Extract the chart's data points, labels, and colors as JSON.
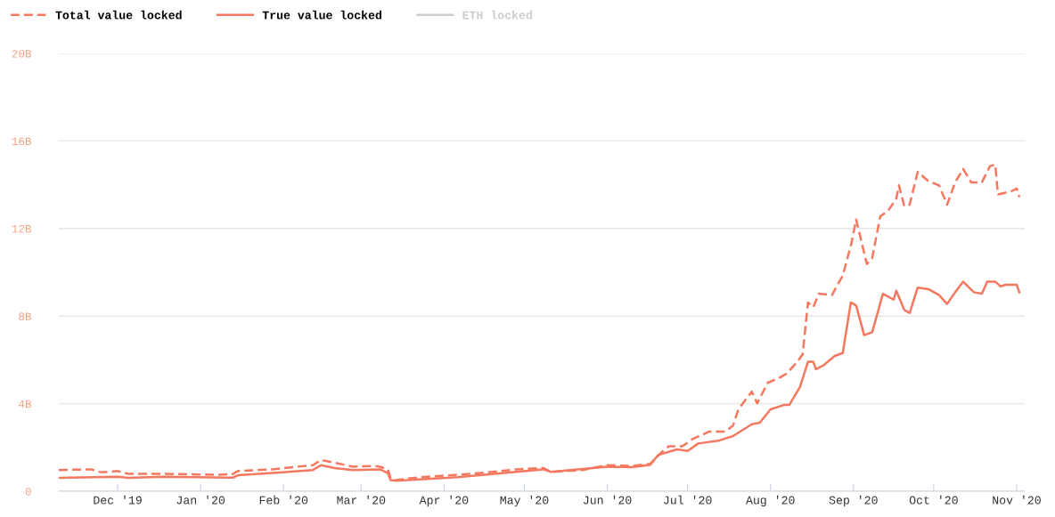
{
  "chart_data": {
    "type": "line",
    "legend": "top left",
    "grid": "y",
    "xlim": [
      "2019-11-09",
      "2020-11-04"
    ],
    "ylim": [
      0,
      20
    ],
    "yticks": [
      0,
      {
        "value": 4,
        "label": "4B"
      },
      {
        "value": 8,
        "label": "8B"
      },
      {
        "value": 12,
        "label": "12B"
      },
      {
        "value": 16,
        "label": "16B"
      },
      {
        "value": 20,
        "label": "20B"
      }
    ],
    "xticks": [
      {
        "value": "2019-12-01",
        "label": "Dec '19"
      },
      {
        "value": "2020-01-01",
        "label": "Jan '20"
      },
      {
        "value": "2020-02-01",
        "label": "Feb '20"
      },
      {
        "value": "2020-03-01",
        "label": "Mar '20"
      },
      {
        "value": "2020-04-01",
        "label": "Apr '20"
      },
      {
        "value": "2020-05-01",
        "label": "May '20"
      },
      {
        "value": "2020-06-01",
        "label": "Jun '20"
      },
      {
        "value": "2020-07-01",
        "label": "Jul '20"
      },
      {
        "value": "2020-08-01",
        "label": "Aug '20"
      },
      {
        "value": "2020-09-01",
        "label": "Sep '20"
      },
      {
        "value": "2020-10-01",
        "label": "Oct '20"
      },
      {
        "value": "2020-11-01",
        "label": "Nov '20"
      }
    ],
    "series": [
      {
        "name": "Total value locked",
        "color": "#f4785f",
        "line_style": "dashed",
        "x": [
          "2019-11-09",
          "2019-11-21",
          "2019-11-25",
          "2019-12-01",
          "2019-12-05",
          "2019-12-18",
          "2020-01-07",
          "2020-01-13",
          "2020-01-15",
          "2020-01-28",
          "2020-02-06",
          "2020-02-12",
          "2020-02-15",
          "2020-02-20",
          "2020-02-27",
          "2020-03-06",
          "2020-03-08",
          "2020-03-11",
          "2020-03-12",
          "2020-03-14",
          "2020-03-23",
          "2020-04-06",
          "2020-04-19",
          "2020-04-28",
          "2020-05-08",
          "2020-05-11",
          "2020-05-23",
          "2020-06-01",
          "2020-06-10",
          "2020-06-17",
          "2020-06-21",
          "2020-06-24",
          "2020-06-29",
          "2020-07-03",
          "2020-07-09",
          "2020-07-15",
          "2020-07-18",
          "2020-07-20",
          "2020-07-25",
          "2020-07-27",
          "2020-07-31",
          "2020-08-04",
          "2020-08-07",
          "2020-08-11",
          "2020-08-13",
          "2020-08-15",
          "2020-08-17",
          "2020-08-19",
          "2020-08-24",
          "2020-08-26",
          "2020-08-28",
          "2020-08-30",
          "2020-08-31",
          "2020-09-02",
          "2020-09-06",
          "2020-09-08",
          "2020-09-11",
          "2020-09-14",
          "2020-09-17",
          "2020-09-18",
          "2020-09-20",
          "2020-09-22",
          "2020-09-25",
          "2020-09-29",
          "2020-10-03",
          "2020-10-06",
          "2020-10-09",
          "2020-10-12",
          "2020-10-15",
          "2020-10-19",
          "2020-10-22",
          "2020-10-24",
          "2020-10-25",
          "2020-10-30",
          "2020-11-01",
          "2020-11-02"
        ],
        "values": [
          0.97,
          1.0,
          0.86,
          0.92,
          0.79,
          0.79,
          0.75,
          0.79,
          0.92,
          1.0,
          1.12,
          1.19,
          1.43,
          1.3,
          1.12,
          1.16,
          1.12,
          1.0,
          0.6,
          0.51,
          0.64,
          0.75,
          0.88,
          1.0,
          1.06,
          0.88,
          0.97,
          1.19,
          1.15,
          1.25,
          1.75,
          2.05,
          2.05,
          2.39,
          2.72,
          2.72,
          3.0,
          3.74,
          4.55,
          4.01,
          4.96,
          5.16,
          5.37,
          5.91,
          6.25,
          8.62,
          8.41,
          9.02,
          8.96,
          9.43,
          9.84,
          10.78,
          11.19,
          12.41,
          10.38,
          10.65,
          12.55,
          12.82,
          13.36,
          13.97,
          13.02,
          13.09,
          14.58,
          14.17,
          13.97,
          13.09,
          14.11,
          14.72,
          14.11,
          14.11,
          14.85,
          14.92,
          13.56,
          13.7,
          13.83,
          13.43
        ]
      },
      {
        "name": "True value locked",
        "color": "#f4785f",
        "line_style": "solid",
        "x": [
          "2019-11-09",
          "2019-12-01",
          "2019-12-05",
          "2019-12-18",
          "2020-01-13",
          "2020-01-15",
          "2020-01-28",
          "2020-02-12",
          "2020-02-15",
          "2020-02-20",
          "2020-02-27",
          "2020-03-08",
          "2020-03-11",
          "2020-03-12",
          "2020-03-14",
          "2020-04-06",
          "2020-04-28",
          "2020-05-08",
          "2020-05-11",
          "2020-06-01",
          "2020-06-10",
          "2020-06-17",
          "2020-06-20",
          "2020-06-27",
          "2020-07-01",
          "2020-07-05",
          "2020-07-13",
          "2020-07-18",
          "2020-07-25",
          "2020-07-28",
          "2020-08-01",
          "2020-08-06",
          "2020-08-08",
          "2020-08-12",
          "2020-08-15",
          "2020-08-17",
          "2020-08-18",
          "2020-08-21",
          "2020-08-25",
          "2020-08-28",
          "2020-08-31",
          "2020-09-02",
          "2020-09-05",
          "2020-09-08",
          "2020-09-12",
          "2020-09-16",
          "2020-09-17",
          "2020-09-20",
          "2020-09-22",
          "2020-09-25",
          "2020-09-29",
          "2020-10-03",
          "2020-10-06",
          "2020-10-09",
          "2020-10-12",
          "2020-10-16",
          "2020-10-19",
          "2020-10-21",
          "2020-10-24",
          "2020-10-26",
          "2020-10-28",
          "2020-11-01",
          "2020-11-02"
        ],
        "values": [
          0.61,
          0.66,
          0.61,
          0.66,
          0.62,
          0.73,
          0.83,
          0.97,
          1.19,
          1.06,
          0.97,
          1.0,
          0.83,
          0.51,
          0.48,
          0.64,
          0.88,
          1.0,
          0.88,
          1.12,
          1.1,
          1.2,
          1.65,
          1.91,
          1.84,
          2.18,
          2.32,
          2.52,
          3.06,
          3.13,
          3.74,
          3.94,
          3.94,
          4.76,
          5.91,
          5.91,
          5.57,
          5.77,
          6.18,
          6.31,
          8.62,
          8.48,
          7.13,
          7.26,
          9.02,
          8.75,
          9.16,
          8.28,
          8.14,
          9.3,
          9.23,
          8.96,
          8.55,
          9.09,
          9.57,
          9.09,
          9.02,
          9.57,
          9.57,
          9.36,
          9.43,
          9.43,
          9.09
        ]
      },
      {
        "name": "ETH locked",
        "color": "#cccccc",
        "line_style": "solid"
      }
    ]
  }
}
